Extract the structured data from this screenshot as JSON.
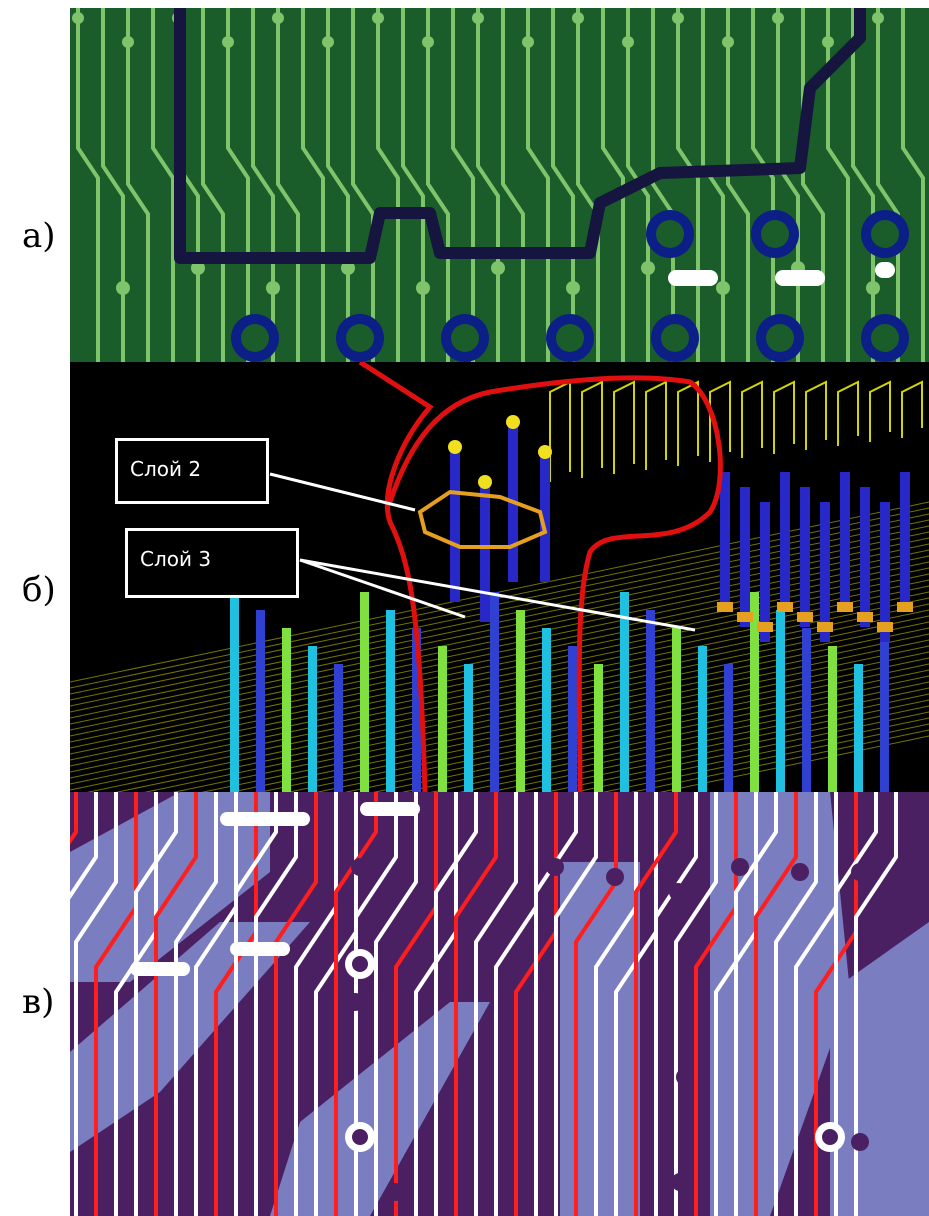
{
  "panels": [
    {
      "label": "а)",
      "colors": {
        "board": "#1a5c2a",
        "trace": "#7fc46a",
        "route": "#15153f",
        "via": "#0c1f86"
      }
    },
    {
      "label": "б)",
      "colors": {
        "background": "#000000",
        "outline": "#d4d400",
        "highlight": "#e01010",
        "via": "#2828c8",
        "pad": "#e6a020"
      }
    },
    {
      "label": "в)",
      "colors": {
        "board": "#4b2062",
        "trace_a": "#ffffff",
        "trace_b": "#ff1e1e",
        "plane": "#7a7ec0"
      }
    }
  ],
  "callouts": {
    "layer2": "Слой 2",
    "layer3": "Слой 3"
  }
}
